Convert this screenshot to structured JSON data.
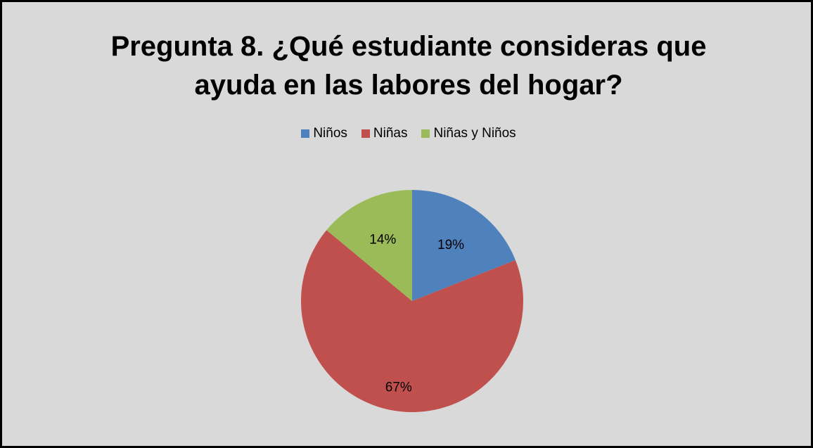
{
  "chart_data": {
    "type": "pie",
    "title_lines": [
      "Pregunta 8. ¿Qué estudiante consideras que",
      "ayuda en las labores del hogar?"
    ],
    "categories": [
      "Niños",
      "Niñas",
      "Niñas y Niños"
    ],
    "values": [
      19,
      67,
      14
    ],
    "labels": [
      "19%",
      "67%",
      "14%"
    ],
    "colors": [
      "#4f81bd",
      "#c0504d",
      "#9bbb59"
    ],
    "legend_position": "top",
    "start_angle": "12 o'clock",
    "direction": "clockwise"
  }
}
